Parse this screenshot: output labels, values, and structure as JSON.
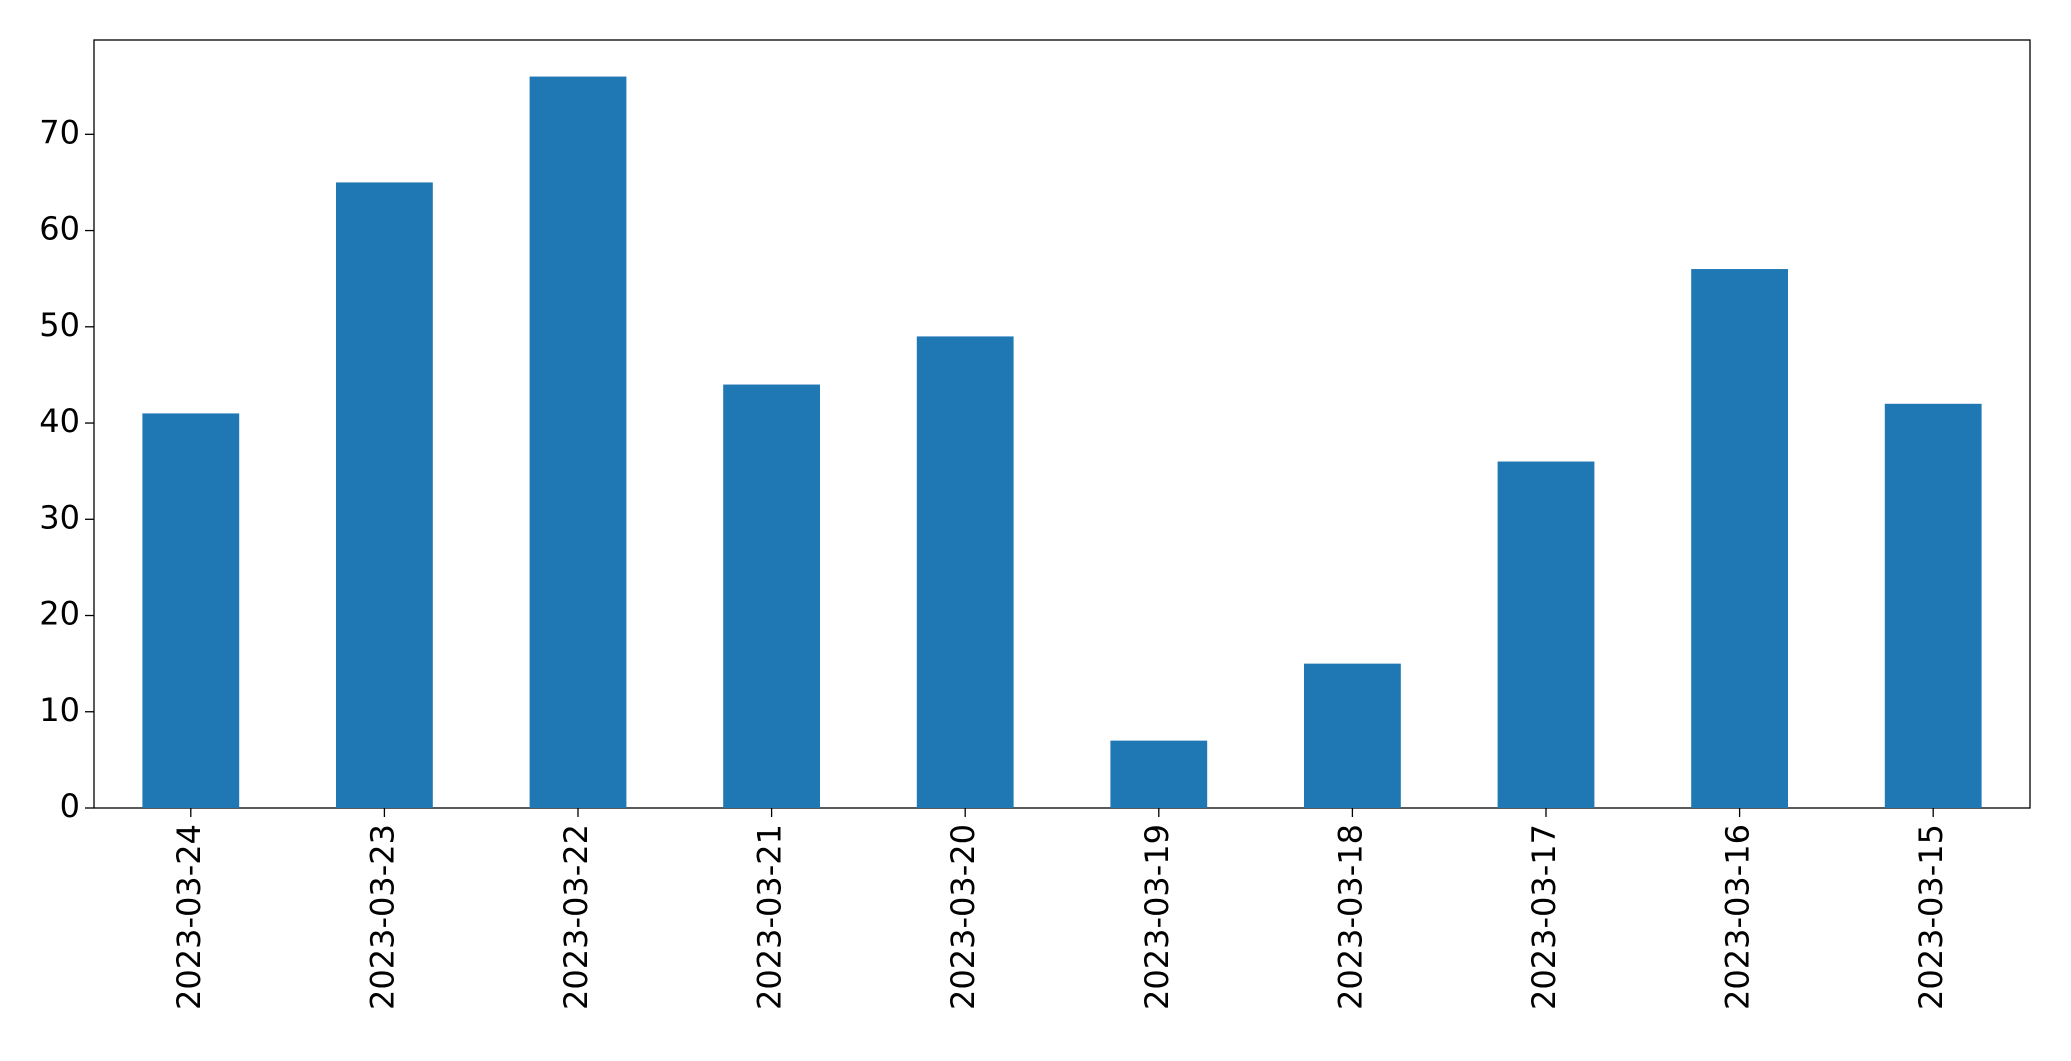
{
  "chart_data": {
    "type": "bar",
    "categories": [
      "2023-03-24",
      "2023-03-23",
      "2023-03-22",
      "2023-03-21",
      "2023-03-20",
      "2023-03-19",
      "2023-03-18",
      "2023-03-17",
      "2023-03-16",
      "2023-03-15"
    ],
    "values": [
      41,
      65,
      76,
      44,
      49,
      7,
      15,
      36,
      56,
      42
    ],
    "color": "#1f77b4",
    "ylim": [
      0,
      79.8
    ],
    "yticks": [
      0,
      10,
      20,
      30,
      40,
      50,
      60,
      70
    ],
    "grid": false
  }
}
